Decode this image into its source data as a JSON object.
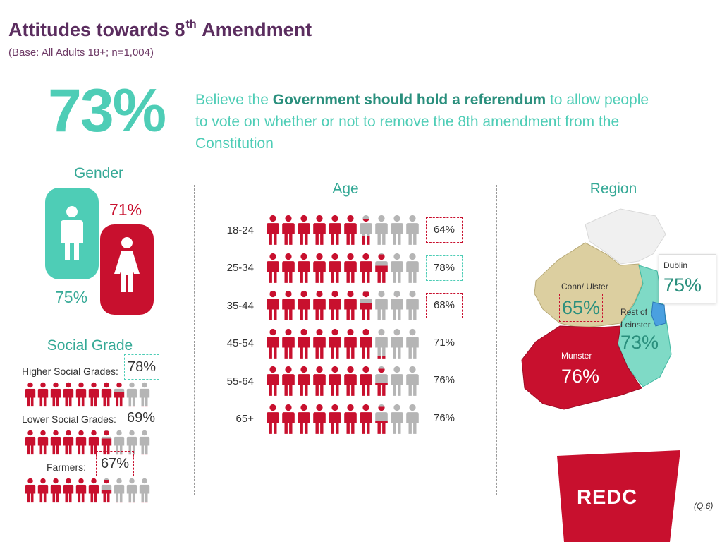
{
  "header": {
    "title_pre": "Attitudes towards 8",
    "title_sup": "th",
    "title_post": " Amendment",
    "base": "(Base: All Adults 18+; n=1,004)"
  },
  "headline": {
    "value": "73%",
    "statement_pre": "Believe the ",
    "statement_bold": "Government should hold a referendum",
    "statement_post": " to allow people to vote on whether or not to remove the 8th amendment from the Constitution"
  },
  "gender": {
    "heading": "Gender",
    "male_pct": "75%",
    "female_pct": "71%"
  },
  "social_grade": {
    "heading": "Social Grade",
    "rows": [
      {
        "label": "Higher Social Grades:",
        "pct": "78%",
        "value": 78
      },
      {
        "label": "Lower Social Grades:",
        "pct": "69%",
        "value": 69
      },
      {
        "label": "Farmers:",
        "pct": "67%",
        "value": 67
      }
    ]
  },
  "age": {
    "heading": "Age",
    "rows": [
      {
        "label": "18-24",
        "pct": "64%",
        "value": 64,
        "box": "red"
      },
      {
        "label": "25-34",
        "pct": "78%",
        "value": 78,
        "box": "teal"
      },
      {
        "label": "35-44",
        "pct": "68%",
        "value": 68,
        "box": "red"
      },
      {
        "label": "45-54",
        "pct": "71%",
        "value": 71,
        "box": "none"
      },
      {
        "label": "55-64",
        "pct": "76%",
        "value": 76,
        "box": "none"
      },
      {
        "label": "65+",
        "pct": "76%",
        "value": 76,
        "box": "none"
      }
    ]
  },
  "region": {
    "heading": "Region",
    "dublin_label": "Dublin",
    "dublin_pct": "75%",
    "conn_label": "Conn/ Ulster",
    "conn_pct": "65%",
    "rol_label": "Rest of Leinster",
    "rol_pct": "73%",
    "munster_label": "Munster",
    "munster_pct": "76%"
  },
  "footer": {
    "logo": "REDC",
    "question_ref": "(Q.6)"
  },
  "colors": {
    "red": "#c8102e",
    "teal": "#4ecdb6",
    "grey": "#b5b5b5",
    "title_purple": "#5b2d5f"
  },
  "chart_data": [
    {
      "type": "bar",
      "title": "Age",
      "categories": [
        "18-24",
        "25-34",
        "35-44",
        "45-54",
        "55-64",
        "65+"
      ],
      "values": [
        64,
        78,
        68,
        71,
        76,
        76
      ],
      "ylim": [
        0,
        100
      ]
    },
    {
      "type": "bar",
      "title": "Social Grade",
      "categories": [
        "Higher Social Grades",
        "Lower Social Grades",
        "Farmers"
      ],
      "values": [
        78,
        69,
        67
      ],
      "ylim": [
        0,
        100
      ]
    },
    {
      "type": "bar",
      "title": "Gender",
      "categories": [
        "Male",
        "Female"
      ],
      "values": [
        75,
        71
      ]
    },
    {
      "type": "bar",
      "title": "Region",
      "categories": [
        "Dublin",
        "Conn/ Ulster",
        "Rest of Leinster",
        "Munster"
      ],
      "values": [
        75,
        65,
        73,
        76
      ]
    }
  ]
}
